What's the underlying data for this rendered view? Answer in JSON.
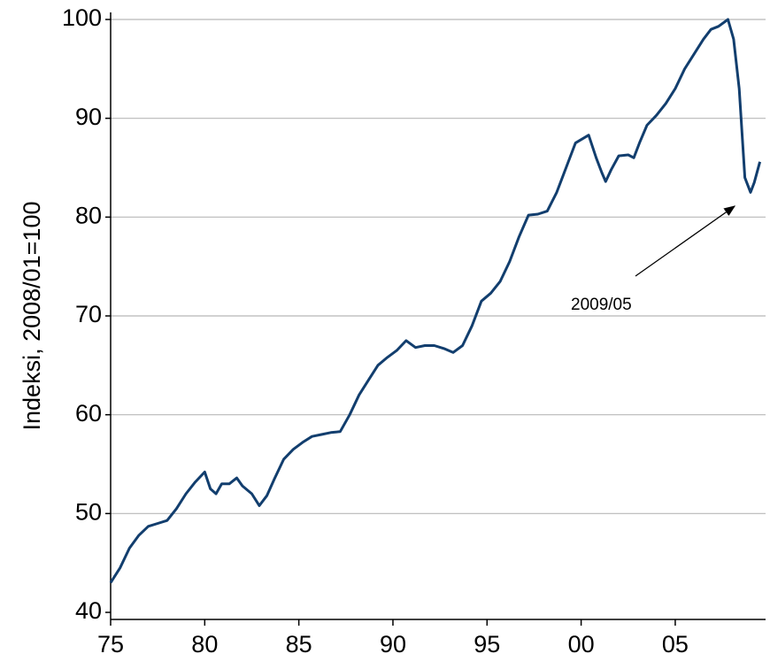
{
  "chart_data": {
    "type": "line",
    "y_label": "Indeksi, 2008/01=100",
    "annotation": "2009/05",
    "color": "#123e6e",
    "grid": true,
    "x": [
      1975.0,
      1975.5,
      1976.0,
      1976.5,
      1977.0,
      1977.5,
      1978.0,
      1978.5,
      1979.0,
      1979.5,
      1980.0,
      1980.3,
      1980.6,
      1980.9,
      1981.3,
      1981.7,
      1982.0,
      1982.5,
      1982.9,
      1983.3,
      1983.7,
      1984.2,
      1984.7,
      1985.2,
      1985.7,
      1986.2,
      1986.7,
      1987.2,
      1987.7,
      1988.2,
      1988.7,
      1989.2,
      1989.7,
      1990.2,
      1990.7,
      1991.2,
      1991.7,
      1992.2,
      1992.7,
      1993.2,
      1993.7,
      1994.2,
      1994.7,
      1995.2,
      1995.7,
      1996.2,
      1996.7,
      1997.2,
      1997.7,
      1998.2,
      1998.7,
      1999.2,
      1999.7,
      2000.4,
      2000.8,
      2001.1,
      2001.3,
      2001.6,
      2002.0,
      2002.5,
      2002.8,
      2003.1,
      2003.5,
      2004.0,
      2004.5,
      2005.0,
      2005.5,
      2006.0,
      2006.5,
      2006.9,
      2007.3,
      2007.8,
      2008.1,
      2008.4,
      2008.7,
      2009.0,
      2009.2,
      2009.5
    ],
    "values": [
      43,
      44.5,
      46.5,
      47.8,
      48.7,
      49.0,
      49.3,
      50.5,
      52.0,
      53.2,
      54.2,
      52.5,
      52.0,
      53.0,
      53.0,
      53.6,
      52.8,
      52.0,
      50.8,
      51.8,
      53.5,
      55.5,
      56.5,
      57.2,
      57.8,
      58.0,
      58.2,
      58.3,
      60,
      62,
      63.5,
      65,
      65.8,
      66.5,
      67.5,
      66.8,
      67.0,
      67.0,
      66.7,
      66.3,
      67.0,
      69,
      71.5,
      72.3,
      73.5,
      75.5,
      78,
      80.2,
      80.3,
      80.6,
      82.5,
      85,
      87.5,
      88.3,
      86,
      84.5,
      83.6,
      84.8,
      86.2,
      86.3,
      86,
      87.5,
      89.3,
      90.3,
      91.5,
      93,
      95,
      96.5,
      98,
      99,
      99.3,
      100,
      98,
      93,
      84,
      82.5,
      83.5,
      85.6
    ],
    "xlim": [
      1975,
      2009.8
    ],
    "xticks": [
      {
        "value": 1975,
        "label": "75"
      },
      {
        "value": 1980,
        "label": "80"
      },
      {
        "value": 1985,
        "label": "85"
      },
      {
        "value": 1990,
        "label": "90"
      },
      {
        "value": 1995,
        "label": "95"
      },
      {
        "value": 2000,
        "label": "00"
      },
      {
        "value": 2005,
        "label": "05"
      }
    ],
    "ylim": [
      40,
      100
    ],
    "yticks": [
      40,
      50,
      60,
      70,
      80,
      90,
      100
    ]
  }
}
